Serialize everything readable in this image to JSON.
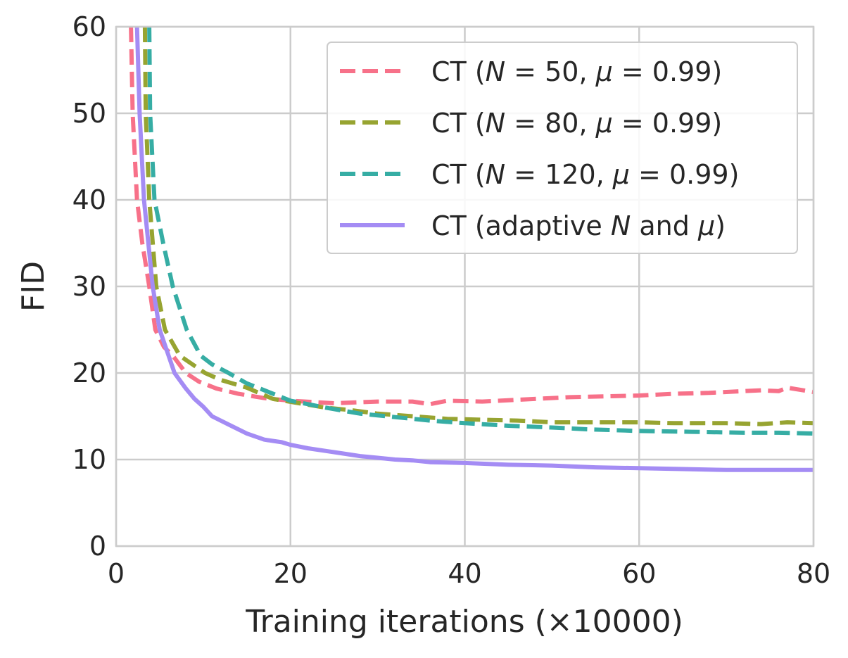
{
  "chart_data": {
    "type": "line",
    "title": "",
    "xlabel": "Training iterations (×10000)",
    "ylabel": "FID",
    "xlim": [
      0,
      80
    ],
    "ylim": [
      0,
      60
    ],
    "xticks": [
      "0",
      "20",
      "40",
      "60",
      "80"
    ],
    "yticks": [
      "0",
      "10",
      "20",
      "30",
      "40",
      "50",
      "60"
    ],
    "grid": true,
    "legend_position": "top-right",
    "series": [
      {
        "name": "CT (N = 50, μ = 0.99)",
        "label_parts": [
          "CT (",
          "N",
          " = 50, ",
          "μ",
          " = 0.99)"
        ],
        "color": "#f77189",
        "style": "dashed",
        "x": [
          1.7,
          1.9,
          2.4,
          3.0,
          3.8,
          4.5,
          5.5,
          6.5,
          8,
          9.5,
          11.5,
          14,
          17,
          20,
          25,
          30,
          34,
          36,
          38,
          42,
          46,
          48,
          52,
          56,
          60,
          64,
          68,
          72,
          74,
          76,
          77,
          80
        ],
        "y": [
          60,
          50,
          40,
          35,
          30,
          25,
          23,
          22,
          20,
          19,
          18.2,
          17.6,
          17.1,
          16.8,
          16.5,
          16.7,
          16.7,
          16.4,
          16.8,
          16.7,
          16.9,
          17.0,
          17.2,
          17.3,
          17.4,
          17.6,
          17.7,
          17.9,
          18.0,
          17.9,
          18.3,
          17.8
        ]
      },
      {
        "name": "CT (N = 80, μ = 0.99)",
        "label_parts": [
          "CT (",
          "N",
          " = 80, ",
          "μ",
          " = 0.99)"
        ],
        "color": "#97a431",
        "style": "dashed",
        "x": [
          3.3,
          3.4,
          3.8,
          4.6,
          5.6,
          7.3,
          10.2,
          12,
          15,
          18,
          21,
          24,
          27,
          30,
          34,
          38,
          42,
          46,
          50,
          54,
          60,
          64,
          70,
          74,
          77,
          80
        ],
        "y": [
          60,
          50,
          40,
          30,
          25,
          22,
          20,
          19.2,
          18.3,
          17.0,
          16.5,
          16.0,
          15.7,
          15.3,
          15.0,
          14.7,
          14.6,
          14.5,
          14.3,
          14.3,
          14.3,
          14.2,
          14.2,
          14.1,
          14.3,
          14.2
        ]
      },
      {
        "name": "CT (N = 120, μ = 0.99)",
        "label_parts": [
          "CT (",
          "N",
          " = 120, ",
          "μ",
          " = 0.99)"
        ],
        "color": "#36ada4",
        "style": "dashed",
        "x": [
          3.8,
          3.9,
          4.4,
          5.4,
          6.5,
          8.1,
          9.7,
          11,
          12.9,
          15,
          17,
          20,
          24,
          28,
          32,
          36,
          40,
          45,
          50,
          54,
          60,
          66,
          72,
          76,
          80
        ],
        "y": [
          60,
          50,
          40,
          35,
          30,
          25,
          22,
          21,
          20,
          18.8,
          18,
          16.8,
          16.0,
          15.3,
          14.9,
          14.5,
          14.2,
          13.9,
          13.7,
          13.5,
          13.3,
          13.2,
          13.1,
          13.1,
          13.0
        ]
      },
      {
        "name": "CT (adaptive N and μ)",
        "label_parts": [
          "CT (adaptive ",
          "N",
          " and ",
          "μ",
          ")"
        ],
        "color": "#a48cf4",
        "style": "solid",
        "x": [
          2.4,
          2.7,
          3.2,
          3.7,
          4.2,
          5,
          6.7,
          8,
          9,
          10,
          11,
          13,
          15,
          17,
          19,
          20,
          22,
          24,
          26,
          28,
          30,
          32,
          34,
          36,
          40,
          45,
          50,
          55,
          60,
          65,
          70,
          75,
          80
        ],
        "y": [
          60,
          50,
          40,
          35,
          30,
          25,
          20,
          18.2,
          17,
          16.1,
          15,
          14,
          13,
          12.3,
          12,
          11.7,
          11.3,
          11,
          10.7,
          10.4,
          10.2,
          10,
          9.9,
          9.7,
          9.6,
          9.4,
          9.3,
          9.1,
          9.0,
          8.9,
          8.8,
          8.8,
          8.8
        ]
      }
    ]
  }
}
